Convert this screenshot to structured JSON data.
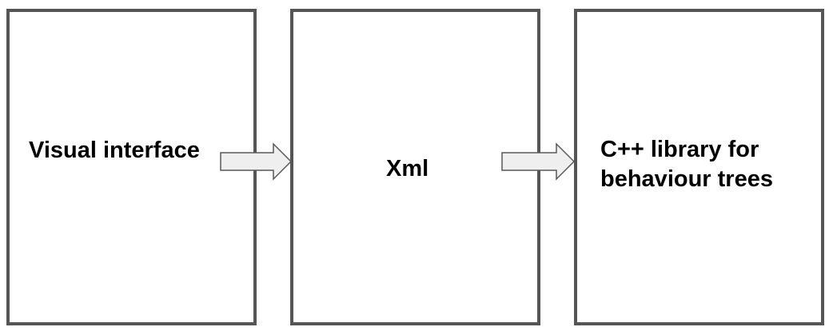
{
  "nodes": [
    {
      "label": "Visual interface"
    },
    {
      "label": "Xml"
    },
    {
      "label_lines": [
        "C++ library for",
        "behaviour trees"
      ]
    }
  ],
  "colors": {
    "box_border": "#555555",
    "arrow_fill": "#efefef",
    "arrow_stroke": "#595959",
    "text": "#000000"
  }
}
